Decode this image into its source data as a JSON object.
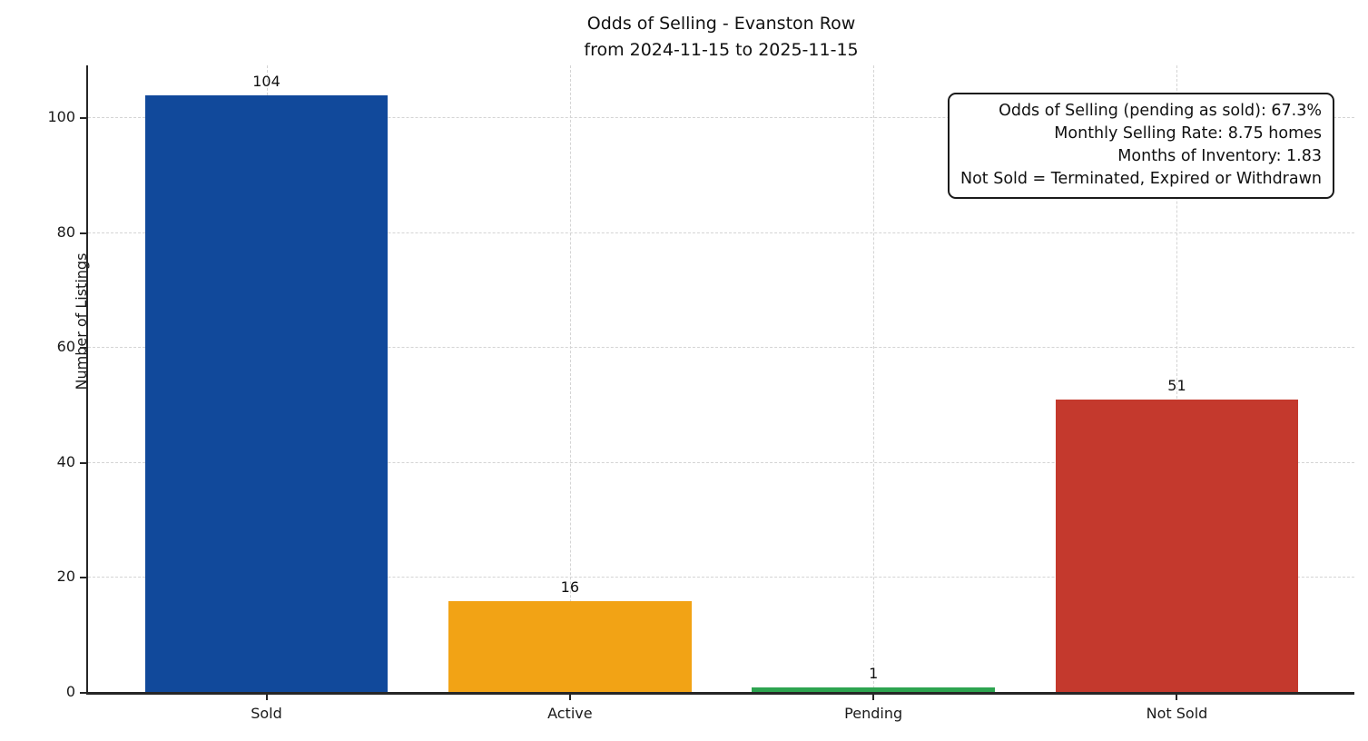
{
  "chart_data": {
    "type": "bar",
    "title": "Odds of Selling - Evanston Row",
    "subtitle": "from 2024-11-15 to 2025-11-15",
    "categories": [
      "Sold",
      "Active",
      "Pending",
      "Not Sold"
    ],
    "values": [
      104,
      16,
      1,
      51
    ],
    "bar_colors": [
      "#11499b",
      "#f2a315",
      "#2da450",
      "#c4392d"
    ],
    "xlabel": "",
    "ylabel": "Number of Listings",
    "yticks": [
      0,
      20,
      40,
      60,
      80,
      100
    ],
    "ylim": [
      0,
      109.2
    ],
    "grid": "dashed light-gray gridlines on both axes",
    "legend_position": "none",
    "annotation_box": {
      "lines": [
        "Odds of Selling (pending as sold): 67.3%",
        "Monthly Selling Rate: 8.75 homes",
        "Months of Inventory: 1.83",
        "Not Sold = Terminated, Expired or Withdrawn"
      ]
    }
  },
  "colors": {
    "background": "#ffffff",
    "axis_spine": "#262626",
    "gridline": "#d4d4d4",
    "text": "#111111",
    "bar_sold": "#11499b",
    "bar_active": "#f2a315",
    "bar_pending": "#2da450",
    "bar_not_sold": "#c4392d"
  }
}
